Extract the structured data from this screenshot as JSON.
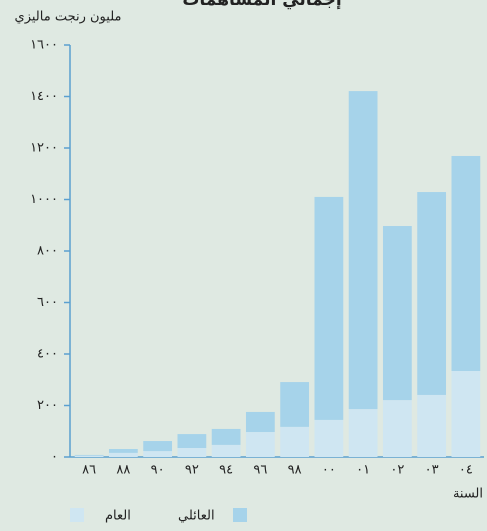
{
  "chart_data": {
    "type": "bar",
    "stacked": true,
    "title": "إجمالي المساهمات",
    "y_label": "مليون رنجت ماليزي",
    "x_label": "السنة",
    "categories": [
      "٨٦",
      "٨٨",
      "٩٠",
      "٩٢",
      "٩٤",
      "٩٦",
      "٩٨",
      "٠٠",
      "٠١",
      "٠٢",
      "٠٣",
      "٠٤"
    ],
    "series": [
      {
        "name": "العام",
        "color": "#cfe6f2",
        "values": [
          5,
          16,
          23,
          35,
          47,
          97,
          117,
          144,
          186,
          221,
          241,
          334
        ]
      },
      {
        "name": "العائلي",
        "color": "#a6d3ea",
        "values": [
          3,
          15,
          39,
          54,
          62,
          78,
          174,
          866,
          1235,
          676,
          788,
          835
        ]
      }
    ],
    "ylim": [
      0,
      1600
    ],
    "yticks": [
      {
        "value": 0,
        "label": "٠"
      },
      {
        "value": 200,
        "label": "٢٠٠"
      },
      {
        "value": 400,
        "label": "٤٠٠"
      },
      {
        "value": 600,
        "label": "٦٠٠"
      },
      {
        "value": 800,
        "label": "٨٠٠"
      },
      {
        "value": 1000,
        "label": "١٠٠٠"
      },
      {
        "value": 1200,
        "label": "١٢٠٠"
      },
      {
        "value": 1400,
        "label": "١٤٠٠"
      },
      {
        "value": 1600,
        "label": "١٦٠٠"
      }
    ]
  }
}
